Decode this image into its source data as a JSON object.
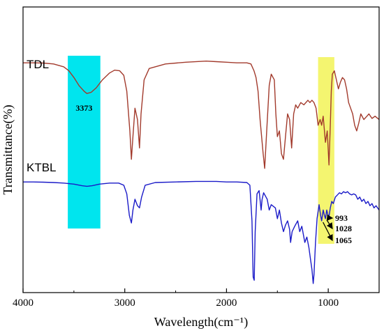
{
  "chart_data": {
    "type": "line",
    "title": "",
    "xlabel": "Wavelength(cm⁻¹)",
    "ylabel": "Transmittance(%)",
    "xlim": [
      4000,
      500
    ],
    "x_ticks": [
      4000,
      3000,
      2000,
      1000
    ],
    "y_ticks_shown": false,
    "grid": false,
    "legend": "none",
    "series": [
      {
        "name": "TDL",
        "color": "#a23a2c",
        "offset": 1,
        "points": [
          [
            4000,
            0.95
          ],
          [
            3900,
            0.95
          ],
          [
            3800,
            0.948
          ],
          [
            3700,
            0.94
          ],
          [
            3600,
            0.915
          ],
          [
            3550,
            0.88
          ],
          [
            3500,
            0.82
          ],
          [
            3450,
            0.75
          ],
          [
            3400,
            0.7
          ],
          [
            3373,
            0.68
          ],
          [
            3330,
            0.69
          ],
          [
            3280,
            0.73
          ],
          [
            3220,
            0.8
          ],
          [
            3150,
            0.86
          ],
          [
            3100,
            0.885
          ],
          [
            3050,
            0.88
          ],
          [
            3010,
            0.84
          ],
          [
            2980,
            0.7
          ],
          [
            2950,
            0.35
          ],
          [
            2935,
            0.1
          ],
          [
            2920,
            0.3
          ],
          [
            2900,
            0.55
          ],
          [
            2875,
            0.45
          ],
          [
            2855,
            0.2
          ],
          [
            2840,
            0.5
          ],
          [
            2810,
            0.8
          ],
          [
            2760,
            0.9
          ],
          [
            2600,
            0.94
          ],
          [
            2400,
            0.955
          ],
          [
            2200,
            0.965
          ],
          [
            2100,
            0.96
          ],
          [
            2000,
            0.955
          ],
          [
            1900,
            0.95
          ],
          [
            1800,
            0.95
          ],
          [
            1760,
            0.94
          ],
          [
            1730,
            0.88
          ],
          [
            1710,
            0.82
          ],
          [
            1690,
            0.7
          ],
          [
            1670,
            0.45
          ],
          [
            1640,
            0.15
          ],
          [
            1625,
            0.02
          ],
          [
            1605,
            0.35
          ],
          [
            1580,
            0.75
          ],
          [
            1560,
            0.85
          ],
          [
            1530,
            0.8
          ],
          [
            1515,
            0.5
          ],
          [
            1500,
            0.3
          ],
          [
            1480,
            0.35
          ],
          [
            1460,
            0.15
          ],
          [
            1440,
            0.1
          ],
          [
            1420,
            0.3
          ],
          [
            1400,
            0.5
          ],
          [
            1380,
            0.45
          ],
          [
            1360,
            0.2
          ],
          [
            1340,
            0.5
          ],
          [
            1320,
            0.58
          ],
          [
            1300,
            0.55
          ],
          [
            1270,
            0.6
          ],
          [
            1240,
            0.58
          ],
          [
            1200,
            0.62
          ],
          [
            1180,
            0.6
          ],
          [
            1160,
            0.62
          ],
          [
            1140,
            0.6
          ],
          [
            1120,
            0.55
          ],
          [
            1100,
            0.4
          ],
          [
            1080,
            0.45
          ],
          [
            1065,
            0.4
          ],
          [
            1050,
            0.48
          ],
          [
            1028,
            0.25
          ],
          [
            1010,
            0.35
          ],
          [
            993,
            0.05
          ],
          [
            980,
            0.4
          ],
          [
            970,
            0.7
          ],
          [
            960,
            0.85
          ],
          [
            940,
            0.88
          ],
          [
            920,
            0.8
          ],
          [
            900,
            0.72
          ],
          [
            880,
            0.78
          ],
          [
            860,
            0.82
          ],
          [
            840,
            0.8
          ],
          [
            820,
            0.72
          ],
          [
            800,
            0.6
          ],
          [
            780,
            0.55
          ],
          [
            760,
            0.5
          ],
          [
            740,
            0.4
          ],
          [
            720,
            0.35
          ],
          [
            700,
            0.42
          ],
          [
            680,
            0.5
          ],
          [
            650,
            0.45
          ],
          [
            620,
            0.48
          ],
          [
            600,
            0.5
          ],
          [
            570,
            0.46
          ],
          [
            540,
            0.48
          ],
          [
            500,
            0.45
          ]
        ]
      },
      {
        "name": "KTBL",
        "color": "#1a1ac8",
        "offset": 0,
        "points": [
          [
            4000,
            0.96
          ],
          [
            3900,
            0.96
          ],
          [
            3800,
            0.958
          ],
          [
            3700,
            0.955
          ],
          [
            3600,
            0.95
          ],
          [
            3500,
            0.94
          ],
          [
            3420,
            0.925
          ],
          [
            3373,
            0.92
          ],
          [
            3320,
            0.925
          ],
          [
            3250,
            0.94
          ],
          [
            3150,
            0.95
          ],
          [
            3060,
            0.95
          ],
          [
            3010,
            0.93
          ],
          [
            2980,
            0.85
          ],
          [
            2955,
            0.65
          ],
          [
            2935,
            0.58
          ],
          [
            2920,
            0.7
          ],
          [
            2900,
            0.8
          ],
          [
            2875,
            0.74
          ],
          [
            2855,
            0.72
          ],
          [
            2835,
            0.82
          ],
          [
            2800,
            0.93
          ],
          [
            2700,
            0.955
          ],
          [
            2500,
            0.96
          ],
          [
            2300,
            0.965
          ],
          [
            2100,
            0.965
          ],
          [
            2000,
            0.96
          ],
          [
            1900,
            0.96
          ],
          [
            1800,
            0.955
          ],
          [
            1770,
            0.93
          ],
          [
            1750,
            0.6
          ],
          [
            1738,
            0.08
          ],
          [
            1728,
            0.05
          ],
          [
            1718,
            0.5
          ],
          [
            1700,
            0.85
          ],
          [
            1680,
            0.88
          ],
          [
            1660,
            0.7
          ],
          [
            1650,
            0.8
          ],
          [
            1635,
            0.86
          ],
          [
            1600,
            0.8
          ],
          [
            1580,
            0.7
          ],
          [
            1560,
            0.75
          ],
          [
            1520,
            0.72
          ],
          [
            1500,
            0.62
          ],
          [
            1480,
            0.7
          ],
          [
            1460,
            0.58
          ],
          [
            1440,
            0.5
          ],
          [
            1420,
            0.56
          ],
          [
            1400,
            0.6
          ],
          [
            1380,
            0.52
          ],
          [
            1370,
            0.4
          ],
          [
            1355,
            0.5
          ],
          [
            1330,
            0.55
          ],
          [
            1300,
            0.6
          ],
          [
            1280,
            0.5
          ],
          [
            1260,
            0.55
          ],
          [
            1230,
            0.4
          ],
          [
            1210,
            0.45
          ],
          [
            1190,
            0.35
          ],
          [
            1175,
            0.25
          ],
          [
            1160,
            0.15
          ],
          [
            1148,
            0.02
          ],
          [
            1140,
            0.1
          ],
          [
            1125,
            0.4
          ],
          [
            1110,
            0.62
          ],
          [
            1090,
            0.75
          ],
          [
            1075,
            0.65
          ],
          [
            1065,
            0.6
          ],
          [
            1050,
            0.7
          ],
          [
            1040,
            0.66
          ],
          [
            1028,
            0.62
          ],
          [
            1015,
            0.7
          ],
          [
            1005,
            0.66
          ],
          [
            993,
            0.64
          ],
          [
            980,
            0.72
          ],
          [
            965,
            0.78
          ],
          [
            950,
            0.76
          ],
          [
            930,
            0.82
          ],
          [
            910,
            0.84
          ],
          [
            890,
            0.86
          ],
          [
            870,
            0.85
          ],
          [
            850,
            0.87
          ],
          [
            830,
            0.86
          ],
          [
            810,
            0.87
          ],
          [
            790,
            0.85
          ],
          [
            770,
            0.84
          ],
          [
            750,
            0.85
          ],
          [
            730,
            0.84
          ],
          [
            710,
            0.8
          ],
          [
            690,
            0.82
          ],
          [
            670,
            0.78
          ],
          [
            650,
            0.8
          ],
          [
            630,
            0.76
          ],
          [
            610,
            0.78
          ],
          [
            590,
            0.74
          ],
          [
            570,
            0.76
          ],
          [
            550,
            0.72
          ],
          [
            530,
            0.74
          ],
          [
            500,
            0.7
          ]
        ]
      }
    ],
    "highlights": [
      {
        "from": 3560,
        "to": 3240,
        "color": "#00e5ee"
      },
      {
        "from": 1100,
        "to": 940,
        "color": "#f4f570"
      }
    ],
    "annotations": [
      {
        "text": "3373",
        "x": 3373,
        "series": "TDL"
      },
      {
        "text": "993",
        "x": 993,
        "series": "KTBL",
        "arrow": true
      },
      {
        "text": "1028",
        "x": 1028,
        "series": "KTBL",
        "arrow": true
      },
      {
        "text": "1065",
        "x": 1065,
        "series": "KTBL",
        "arrow": true
      }
    ]
  }
}
